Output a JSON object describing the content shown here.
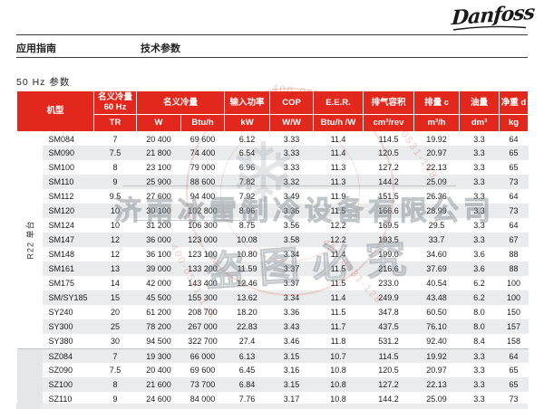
{
  "logo": {
    "brand": "Danfoss"
  },
  "page_header": {
    "left": "应用指南",
    "right": "技术参数"
  },
  "section_title": "50 Hz 参数",
  "table": {
    "header": {
      "model": "机型",
      "nominal_60hz": "名义冷量\n60 Hz",
      "nominal": "名义冷量",
      "input_power": "输入功率",
      "cop": "COP",
      "eer": "E.E.R.",
      "displacement": "排气容积",
      "swept_volume": "排量 c",
      "oil": "油量",
      "net_weight": "净重 d",
      "units": {
        "tr": "TR",
        "w": "W",
        "btuh": "Btu/h",
        "kw": "kW",
        "ww": "W/W",
        "btuhw": "Btu/h /W",
        "cm3rev": "cm³/rev",
        "m3h": "m³/h",
        "dm3": "dm³",
        "kg": "kg"
      }
    },
    "sections": [
      {
        "label": "R22 单台",
        "shaded": false,
        "rows": [
          [
            "SM084",
            "7",
            "20 400",
            "69 600",
            "6.12",
            "3.33",
            "11.4",
            "114.5",
            "19.92",
            "3.3",
            "64"
          ],
          [
            "SM090",
            "7.5",
            "21 800",
            "74 400",
            "6.54",
            "3.33",
            "11.4",
            "120.5",
            "20.97",
            "3.3",
            "65"
          ],
          [
            "SM100",
            "8",
            "23 100",
            "79 000",
            "6.96",
            "3.33",
            "11.3",
            "127.2",
            "22.13",
            "3.3",
            "65"
          ],
          [
            "SM110",
            "9",
            "25 900",
            "88 600",
            "7.82",
            "3.32",
            "11.3",
            "144.2",
            "25.09",
            "3.3",
            "73"
          ],
          [
            "SM112",
            "9.5",
            "27 600",
            "94 400",
            "7.92",
            "3.49",
            "11.9",
            "151.5",
            "26.36",
            "3.3",
            "64"
          ],
          [
            "SM120",
            "10",
            "30 100",
            "102 800",
            "8.96",
            "3.36",
            "11.5",
            "166.6",
            "28.99",
            "3.3",
            "73"
          ],
          [
            "SM124",
            "10",
            "31 200",
            "106 300",
            "8.75",
            "3.56",
            "12.2",
            "169.5",
            "29.5",
            "3.3",
            "64"
          ],
          [
            "SM147",
            "12",
            "36 000",
            "123 000",
            "10.08",
            "3.58",
            "12.2",
            "193.5",
            "33.7",
            "3.3",
            "67"
          ],
          [
            "SM148",
            "12",
            "36 100",
            "123 100",
            "10.80",
            "3.34",
            "11.4",
            "199.0",
            "34.60",
            "3.6",
            "88"
          ],
          [
            "SM161",
            "13",
            "39 000",
            "133 200",
            "11.59",
            "3.37",
            "11.5",
            "216.6",
            "37.69",
            "3.6",
            "88"
          ],
          [
            "SM175",
            "14",
            "42 000",
            "143 400",
            "12.46",
            "3.37",
            "11.5",
            "233.0",
            "40.54",
            "6.2",
            "100"
          ],
          [
            "SM/SY185",
            "15",
            "45 500",
            "155 300",
            "13.62",
            "3.34",
            "11.4",
            "249.9",
            "43.48",
            "6.2",
            "100"
          ],
          [
            "SY240",
            "20",
            "61 200",
            "208 700",
            "18.20",
            "3.36",
            "11.5",
            "347.8",
            "60.50",
            "8.0",
            "150"
          ],
          [
            "SY300",
            "25",
            "78 200",
            "267 000",
            "22.83",
            "3.43",
            "11.7",
            "437.5",
            "76.10",
            "8.0",
            "157"
          ],
          [
            "SY380",
            "30",
            "94 500",
            "322 700",
            "27.4",
            "3.46",
            "11.8",
            "531.2",
            "92.40",
            "8.4",
            "158"
          ]
        ]
      },
      {
        "label": "",
        "shaded": true,
        "rows": [
          [
            "SZ084",
            "7",
            "19 300",
            "66 000",
            "6.13",
            "3.15",
            "10.7",
            "114.5",
            "19.92",
            "3.3",
            "64"
          ],
          [
            "SZ090",
            "7.5",
            "20 400",
            "69 600",
            "6.45",
            "3.16",
            "10.8",
            "120.5",
            "20.97",
            "3.3",
            "65"
          ],
          [
            "SZ100",
            "8",
            "21 600",
            "73 700",
            "6.84",
            "3.15",
            "10.8",
            "127.2",
            "22.13",
            "3.3",
            "65"
          ],
          [
            "SZ110",
            "9",
            "24 600",
            "84 000",
            "7.76",
            "3.17",
            "10.8",
            "144.2",
            "25.09",
            "3.3",
            "73"
          ]
        ]
      }
    ]
  },
  "watermark": {
    "company": "济南冰雷制冷设备有限公司",
    "warning": "盗图必究",
    "phone": "400-0531-128",
    "snowflake": "❄",
    "stamp_color": "#d64a3e"
  },
  "colors": {
    "header_red": "#e2271c",
    "row_stripe": "#e9ebed",
    "section_strip": "#e4e6e8"
  }
}
